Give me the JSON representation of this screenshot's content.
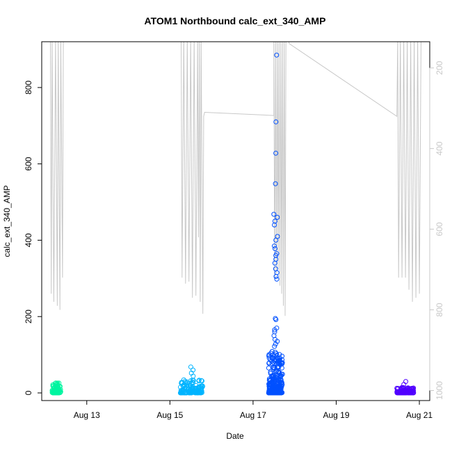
{
  "chart_data": {
    "type": "scatter",
    "title": "ATOM1 Northbound calc_ext_340_AMP",
    "xlabel": "Date",
    "ylabel": "calc_ext_340_AMP",
    "xlim": [
      "2012-08-11T22:00",
      "2012-08-21T06:00"
    ],
    "ylim": [
      -20,
      920
    ],
    "x_ticks": [
      {
        "label": "Aug 13",
        "value": "2012-08-13"
      },
      {
        "label": "Aug 15",
        "value": "2012-08-15"
      },
      {
        "label": "Aug 17",
        "value": "2012-08-17"
      },
      {
        "label": "Aug 19",
        "value": "2012-08-19"
      },
      {
        "label": "Aug 21",
        "value": "2012-08-21"
      }
    ],
    "y_ticks": [
      0,
      200,
      400,
      600,
      800
    ],
    "secondary_axis": {
      "side": "right",
      "color": "#c8c8c8",
      "reversed": true,
      "lim": [
        1025,
        135
      ],
      "ticks": [
        200,
        400,
        600,
        800,
        1000
      ]
    },
    "grid": false,
    "series": [
      {
        "color": "#00f5a0",
        "clusters": [
          {
            "start": "2012-08-12T04:00",
            "end": "2012-08-12T09:00",
            "min": 0,
            "max": 26,
            "count": 90,
            "outliers": [
              26,
              22,
              18
            ]
          }
        ]
      },
      {
        "color": "#00b4ff",
        "clusters": [
          {
            "start": "2012-08-15T06:00",
            "end": "2012-08-15T19:00",
            "min": 0,
            "max": 35,
            "count": 140,
            "outliers": [
              68,
              60,
              52,
              44,
              33,
              28
            ]
          }
        ]
      },
      {
        "color": "#0050ff",
        "clusters": [
          {
            "start": "2012-08-17T09:00",
            "end": "2012-08-17T17:00",
            "min": 0,
            "max": 110,
            "count": 260,
            "outliers": [
              885,
              710,
              628,
              548,
              468,
              460,
              450,
              440,
              410,
              400,
              385,
              378,
              365,
              360,
              350,
              340,
              325,
              315,
              305,
              298,
              195,
              192,
              170,
              165,
              160,
              150,
              140,
              135,
              128,
              122
            ]
          }
        ]
      },
      {
        "color": "#5000ff",
        "clusters": [
          {
            "start": "2012-08-20T11:00",
            "end": "2012-08-20T21:00",
            "min": 0,
            "max": 15,
            "count": 110,
            "outliers": [
              30,
              22,
              14
            ]
          }
        ]
      }
    ],
    "depth_trace": {
      "color": "#c8c8c8",
      "axis": "secondary",
      "points": [
        [
          "2012-08-12T03:00",
          100
        ],
        [
          "2012-08-12T03:30",
          760
        ],
        [
          "2012-08-12T04:00",
          100
        ],
        [
          "2012-08-12T05:00",
          780
        ],
        [
          "2012-08-12T06:00",
          100
        ],
        [
          "2012-08-12T07:00",
          790
        ],
        [
          "2012-08-12T07:30",
          100
        ],
        [
          "2012-08-12T08:30",
          800
        ],
        [
          "2012-08-12T09:00",
          100
        ],
        [
          "2012-08-12T10:00",
          720
        ],
        [
          "2012-08-12T10:30",
          100
        ],
        [
          "2012-08-15T06:30",
          100
        ],
        [
          "2012-08-15T07:00",
          720
        ],
        [
          "2012-08-15T08:00",
          100
        ],
        [
          "2012-08-15T09:00",
          735
        ],
        [
          "2012-08-15T10:00",
          100
        ],
        [
          "2012-08-15T11:00",
          730
        ],
        [
          "2012-08-15T12:00",
          100
        ],
        [
          "2012-08-15T13:00",
          770
        ],
        [
          "2012-08-15T14:00",
          100
        ],
        [
          "2012-08-15T15:00",
          765
        ],
        [
          "2012-08-15T16:00",
          100
        ],
        [
          "2012-08-15T16:30",
          620
        ],
        [
          "2012-08-15T17:00",
          100
        ],
        [
          "2012-08-15T17:30",
          780
        ],
        [
          "2012-08-15T18:00",
          100
        ],
        [
          "2012-08-15T19:00",
          810
        ],
        [
          "2012-08-15T19:30",
          320
        ],
        [
          "2012-08-15T20:00",
          310
        ],
        [
          "2012-08-17T12:00",
          318
        ],
        [
          "2012-08-17T12:00",
          100
        ],
        [
          "2012-08-17T12:30",
          725
        ],
        [
          "2012-08-17T13:00",
          100
        ],
        [
          "2012-08-17T13:30",
          710
        ],
        [
          "2012-08-17T14:00",
          100
        ],
        [
          "2012-08-17T14:30",
          700
        ],
        [
          "2012-08-17T15:00",
          100
        ],
        [
          "2012-08-17T15:30",
          740
        ],
        [
          "2012-08-17T16:00",
          100
        ],
        [
          "2012-08-17T16:30",
          760
        ],
        [
          "2012-08-17T17:00",
          100
        ],
        [
          "2012-08-17T17:30",
          790
        ],
        [
          "2012-08-17T18:00",
          100
        ],
        [
          "2012-08-17T18:30",
          815
        ],
        [
          "2012-08-17T19:00",
          100
        ],
        [
          "2012-08-17T20:00",
          100
        ],
        [
          "2012-08-17T21:00",
          140
        ],
        [
          "2012-08-20T11:00",
          320
        ],
        [
          "2012-08-20T11:30",
          100
        ],
        [
          "2012-08-20T12:00",
          720
        ],
        [
          "2012-08-20T13:00",
          100
        ],
        [
          "2012-08-20T14:00",
          720
        ],
        [
          "2012-08-20T15:00",
          100
        ],
        [
          "2012-08-20T16:00",
          720
        ],
        [
          "2012-08-20T17:00",
          100
        ],
        [
          "2012-08-20T18:00",
          750
        ],
        [
          "2012-08-20T19:00",
          100
        ],
        [
          "2012-08-20T20:00",
          780
        ],
        [
          "2012-08-20T21:00",
          100
        ],
        [
          "2012-08-20T22:00",
          770
        ],
        [
          "2012-08-20T23:00",
          100
        ],
        [
          "2012-08-21T00:00",
          760
        ],
        [
          "2012-08-21T01:00",
          100
        ]
      ]
    }
  }
}
